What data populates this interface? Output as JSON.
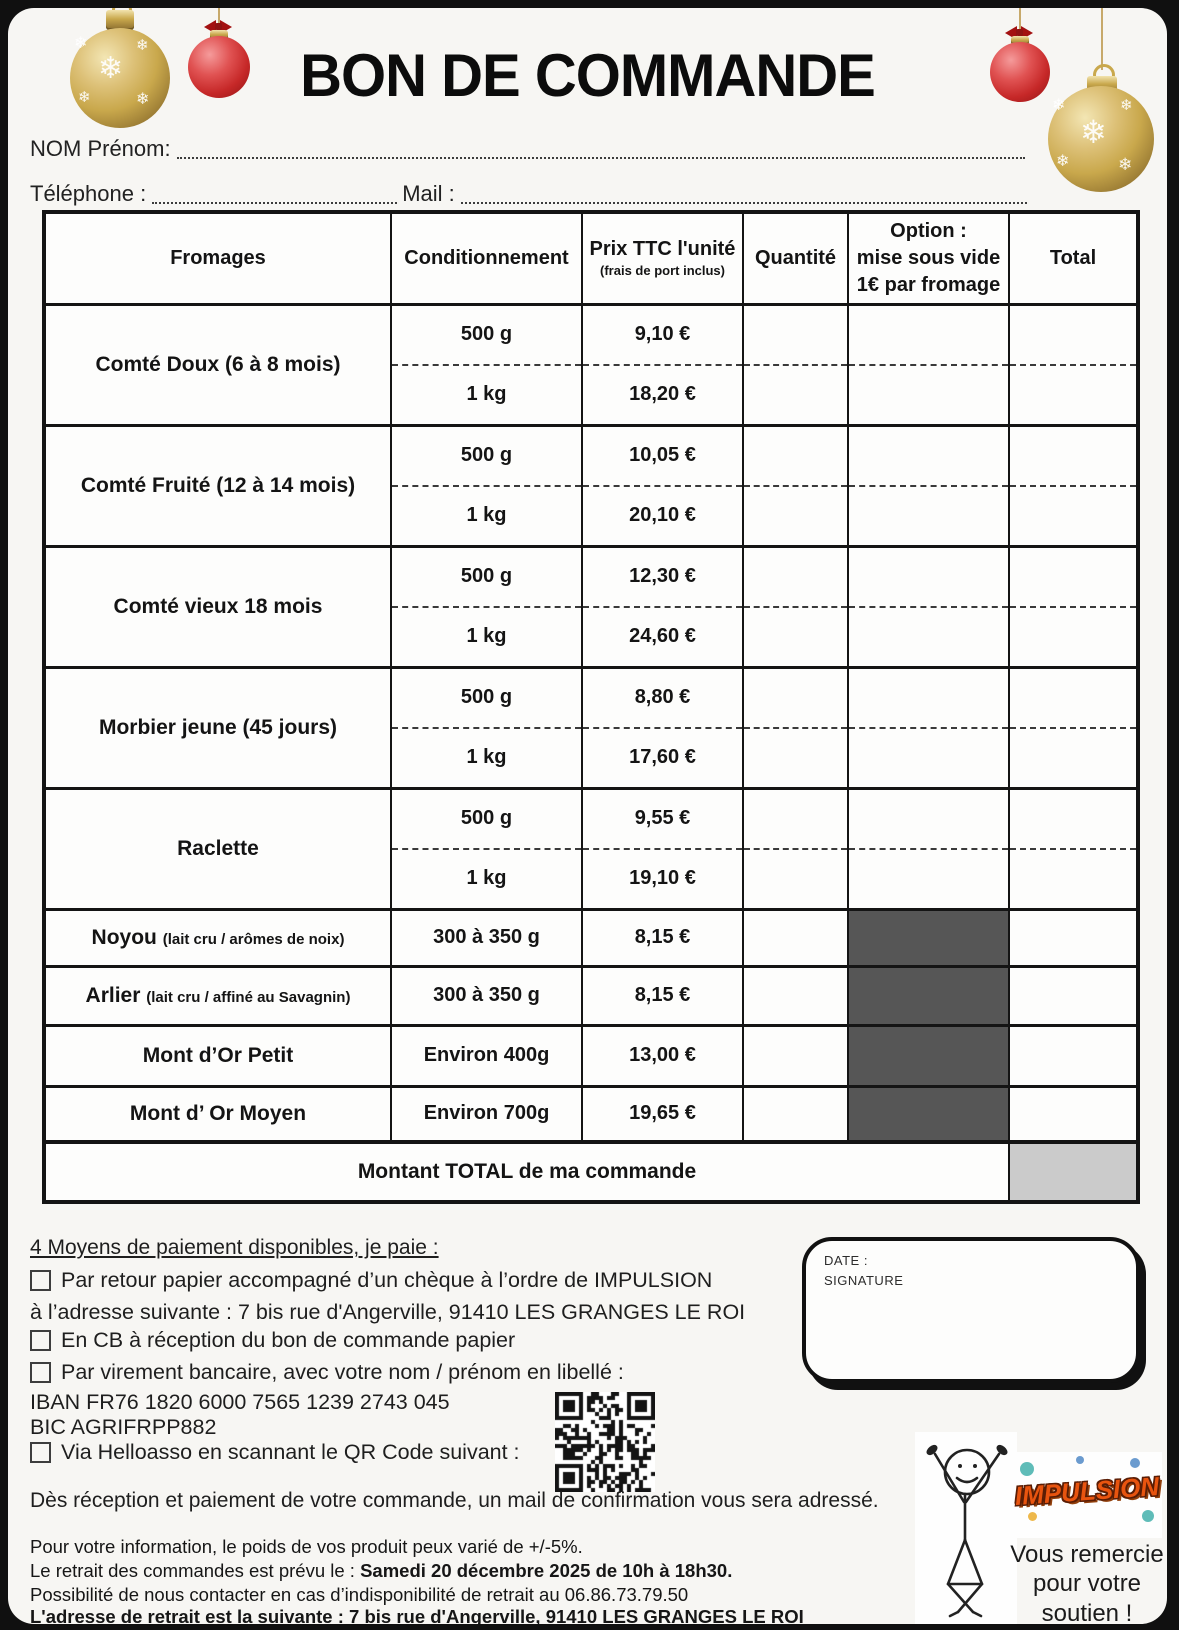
{
  "header": {
    "title": "BON DE COMMANDE",
    "name_label": "NOM Prénom:",
    "phone_label": "Téléphone :",
    "mail_label": "Mail :"
  },
  "table": {
    "col_fromages": "Fromages",
    "col_conditionnement": "Conditionnement",
    "col_prix_1": "Prix TTC l'unité",
    "col_prix_2": "(frais de port inclus)",
    "col_quantite": "Quantité",
    "col_option_1": "Option :",
    "col_option_2": "mise sous vide",
    "col_option_3": "1€ par fromage",
    "col_total": "Total",
    "rows": [
      {
        "name": "Comté Doux (6 à 8 mois)",
        "cond1": "500 g",
        "price1": "9,10 €",
        "cond2": "1 kg",
        "price2": "18,20 €"
      },
      {
        "name": "Comté Fruité (12 à 14 mois)",
        "cond1": "500 g",
        "price1": "10,05 €",
        "cond2": "1 kg",
        "price2": "20,10 €"
      },
      {
        "name": "Comté vieux 18 mois",
        "cond1": "500 g",
        "price1": "12,30 €",
        "cond2": "1 kg",
        "price2": "24,60 €"
      },
      {
        "name": "Morbier jeune (45 jours)",
        "cond1": "500 g",
        "price1": "8,80 €",
        "cond2": "1 kg",
        "price2": "17,60 €"
      },
      {
        "name": "Raclette",
        "cond1": "500 g",
        "price1": "9,55 €",
        "cond2": "1 kg",
        "price2": "19,10 €"
      }
    ],
    "single_rows": [
      {
        "name": "Noyou",
        "note": "(lait cru / arômes de noix)",
        "cond": "300 à 350 g",
        "price": "8,15 €"
      },
      {
        "name": "Arlier",
        "note": "(lait cru / affiné au Savagnin)",
        "cond": "300 à 350 g",
        "price": "8,15 €"
      },
      {
        "name": "Mont d’Or Petit",
        "note": "",
        "cond": "Environ 400g",
        "price": "13,00 €"
      },
      {
        "name": "Mont d’ Or Moyen",
        "note": "",
        "cond": "Environ 700g",
        "price": "19,65 €"
      }
    ],
    "total_label": "Montant TOTAL de ma commande"
  },
  "payment": {
    "heading": "4 Moyens de paiement disponibles, je paie :",
    "option1_line1": "Par retour papier accompagné d’un chèque à l’ordre de IMPULSION",
    "option1_line2": "à l’adresse suivante : 7 bis rue d'Angerville, 91410 LES GRANGES LE ROI",
    "option2": "En CB à réception du bon de commande papier",
    "option3": "Par virement bancaire, avec votre nom / prénom en libellé :",
    "iban": "IBAN FR76 1820 6000 7565 1239 2743 045",
    "bic": "BIC AGRIFRPP882",
    "option4": "Via Helloasso en scannant le QR Code suivant :"
  },
  "signature": {
    "date_label": "DATE :",
    "signature_label": "SIGNATURE"
  },
  "footer": {
    "confirmation": "Dès réception et paiement de votre commande, un mail de confirmation vous sera adressé.",
    "weight_info": "Pour votre information, le poids de vos produit peux varié de +/-5%.",
    "pickup_prefix": "Le retrait des commandes est prévu le : ",
    "pickup_date": "Samedi 20 décembre 2025 de 10h à 18h30.",
    "contact_info": "Possibilité de nous contacter en cas d’indisponibilité de retrait au 06.86.73.79.50",
    "pickup_address": "L'adresse de retrait est la suivante : 7 bis rue d'Angerville, 91410 LES GRANGES LE ROI",
    "logo_text": "IMPULSION",
    "thanks_text": "Vous remercie pour votre soutien !"
  },
  "colors": {
    "blocked_cell": "#565656",
    "total_cell": "#cbcbcb",
    "gold": "#c9a84c",
    "red": "#c62828",
    "logo_orange": "#e8540f"
  }
}
